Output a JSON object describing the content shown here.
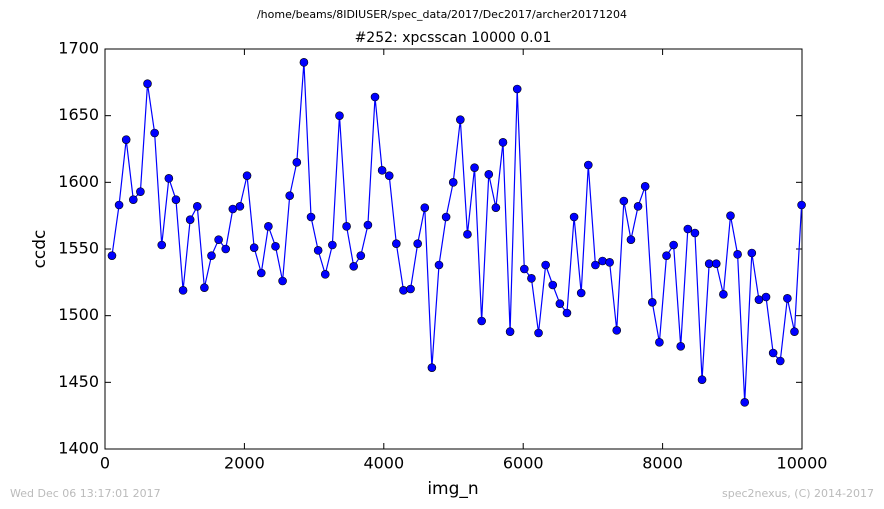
{
  "chart_data": {
    "type": "line",
    "suptitle": "/home/beams/8IDIUSER/spec_data/2017/Dec2017/archer20171204",
    "title": "#252: xpcsscan 10000 0.01",
    "x_label": "img_n",
    "y_label": "ccdc",
    "footer_left": "Wed Dec 06 13:17:01 2017",
    "footer_right": "spec2nexus, (C) 2014-2017",
    "xlim": [
      0,
      10000
    ],
    "xticks": [
      0,
      2000,
      4000,
      6000,
      8000,
      10000
    ],
    "ylim": [
      1400,
      1700
    ],
    "yticks": [
      1400,
      1450,
      1500,
      1550,
      1600,
      1650,
      1700
    ],
    "grid": false,
    "x": [
      100,
      202,
      304,
      406,
      508,
      610,
      712,
      814,
      916,
      1018,
      1120,
      1222,
      1324,
      1426,
      1528,
      1630,
      1732,
      1834,
      1936,
      2038,
      2140,
      2242,
      2344,
      2446,
      2548,
      2650,
      2752,
      2854,
      2956,
      3058,
      3160,
      3262,
      3364,
      3466,
      3568,
      3670,
      3772,
      3874,
      3976,
      4078,
      4180,
      4282,
      4384,
      4486,
      4588,
      4690,
      4792,
      4894,
      4996,
      5098,
      5200,
      5302,
      5404,
      5506,
      5608,
      5710,
      5812,
      5914,
      6016,
      6118,
      6220,
      6322,
      6424,
      6526,
      6628,
      6730,
      6832,
      6934,
      7036,
      7138,
      7240,
      7342,
      7444,
      7546,
      7648,
      7750,
      7852,
      7954,
      8056,
      8158,
      8260,
      8362,
      8464,
      8566,
      8668,
      8770,
      8872,
      8974,
      9076,
      9178,
      9280,
      9382,
      9484,
      9586,
      9688,
      9790,
      9892,
      9994
    ],
    "series": [
      {
        "name": "ccdc",
        "color": "#0000ff",
        "values": [
          1545,
          1583,
          1632,
          1587,
          1593,
          1674,
          1637,
          1553,
          1603,
          1587,
          1519,
          1572,
          1582,
          1521,
          1545,
          1557,
          1550,
          1580,
          1582,
          1605,
          1551,
          1532,
          1567,
          1552,
          1526,
          1590,
          1615,
          1690,
          1574,
          1549,
          1531,
          1553,
          1650,
          1567,
          1537,
          1545,
          1568,
          1664,
          1609,
          1605,
          1554,
          1519,
          1520,
          1554,
          1581,
          1461,
          1538,
          1574,
          1600,
          1647,
          1561,
          1611,
          1496,
          1606,
          1581,
          1630,
          1488,
          1670,
          1535,
          1528,
          1487,
          1538,
          1523,
          1509,
          1502,
          1574,
          1517,
          1613,
          1538,
          1541,
          1540,
          1489,
          1586,
          1557,
          1582,
          1597,
          1510,
          1480,
          1545,
          1553,
          1477,
          1565,
          1562,
          1452,
          1539,
          1539,
          1516,
          1575,
          1546,
          1435,
          1547,
          1512,
          1514,
          1472,
          1466,
          1513,
          1488,
          1583
        ]
      }
    ]
  }
}
